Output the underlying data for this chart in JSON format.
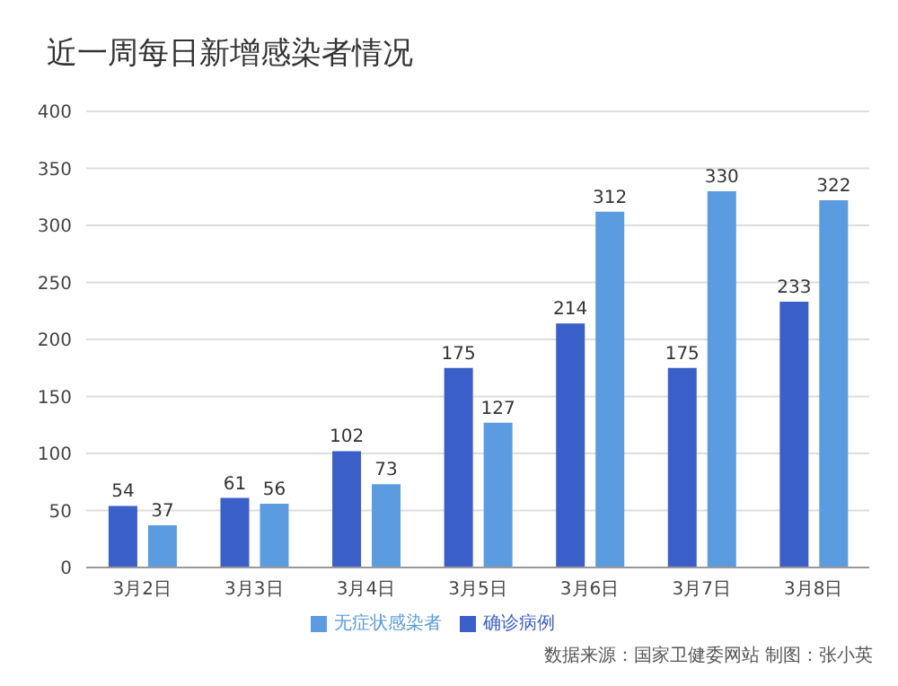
{
  "chart_data": {
    "type": "bar",
    "title": "近一周每日新增感染者情况",
    "categories": [
      "3月2日",
      "3月3日",
      "3月4日",
      "3月5日",
      "3月6日",
      "3月7日",
      "3月8日"
    ],
    "series": [
      {
        "name": "确诊病例",
        "color": "#3b5fc9",
        "values": [
          54,
          61,
          102,
          175,
          214,
          175,
          233
        ]
      },
      {
        "name": "无症状感染者",
        "color": "#5b9be0",
        "values": [
          37,
          56,
          73,
          127,
          312,
          330,
          322
        ]
      }
    ],
    "ylim": [
      0,
      400
    ],
    "yticks": [
      0,
      50,
      100,
      150,
      200,
      250,
      300,
      350,
      400
    ],
    "grid": "y",
    "legend": "bottom",
    "data_labels": true,
    "annotations": [
      "数据来源：国家卫健委网站  制图：张小英"
    ]
  }
}
